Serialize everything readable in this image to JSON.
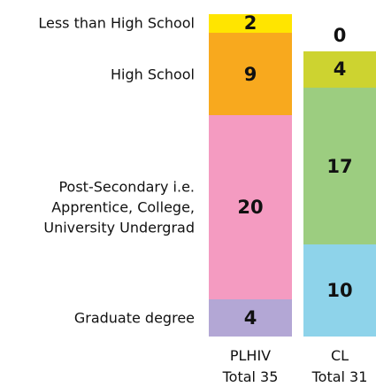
{
  "chart_data": {
    "type": "stacked_bar",
    "categories": [
      "PLHIV",
      "CL"
    ],
    "category_notes": [
      "Total 35",
      "Total 31"
    ],
    "series": [
      {
        "name": "Graduate degree",
        "colors": [
          "#b3a7d5",
          "#8ed3ea"
        ],
        "values": [
          4,
          10
        ]
      },
      {
        "name": "Post-Secondary i.e. Apprentice, College, University Undergrad",
        "colors": [
          "#f49bc1",
          "#9ccd80"
        ],
        "values": [
          20,
          17
        ]
      },
      {
        "name": "High School",
        "colors": [
          "#f8a91e",
          "#cdd330"
        ],
        "values": [
          9,
          4
        ]
      },
      {
        "name": "Less than High School",
        "colors": [
          "#ffe500",
          "#ffe500"
        ],
        "values": [
          2,
          0
        ]
      }
    ]
  }
}
